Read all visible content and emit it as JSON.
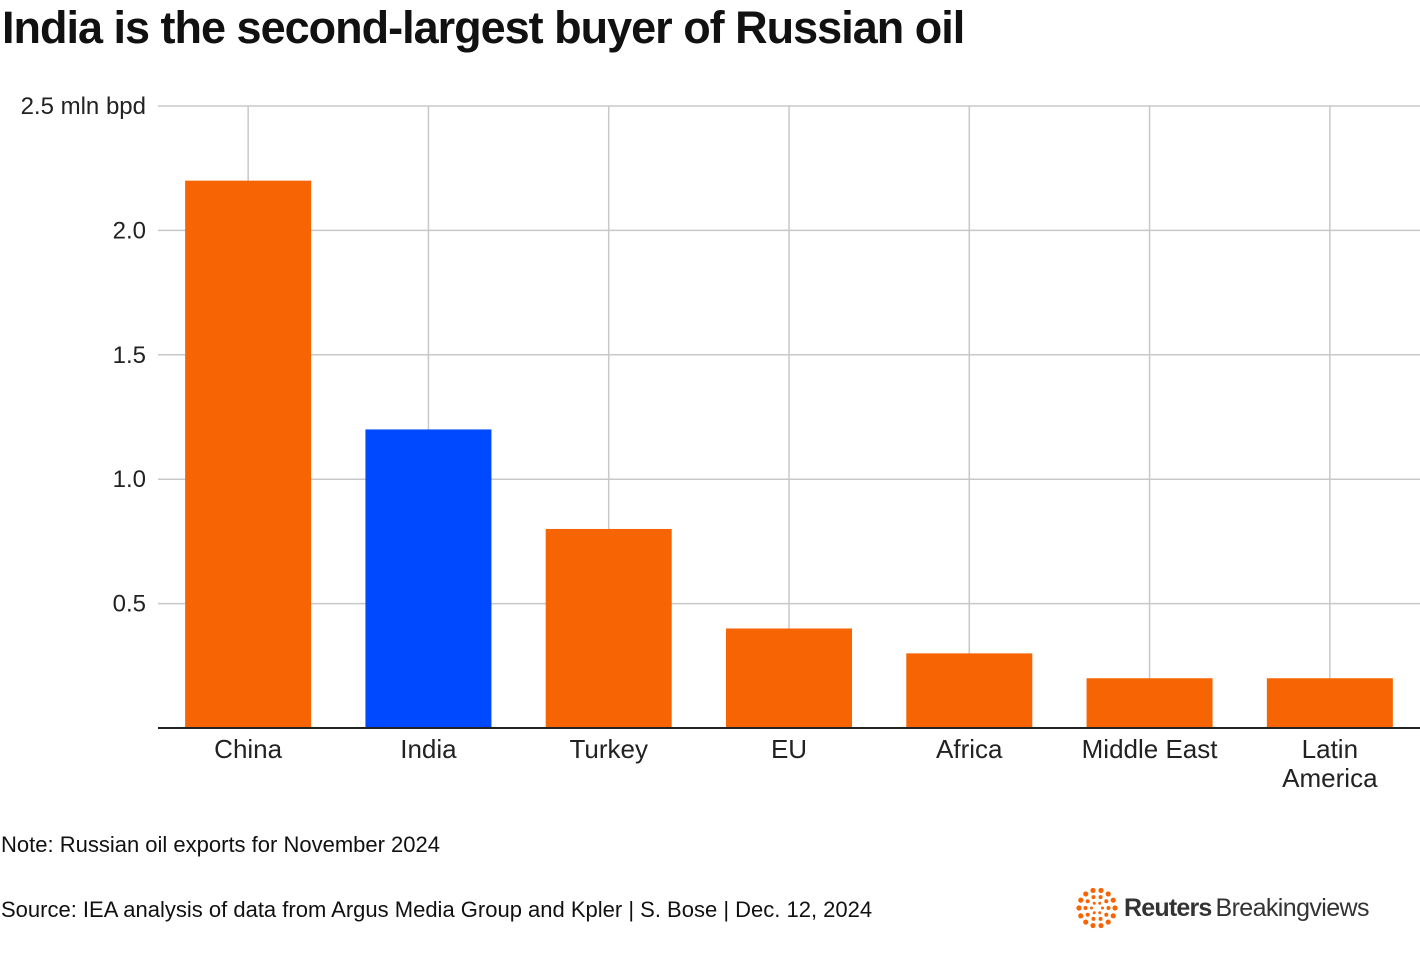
{
  "title": "India is the second-largest buyer of Russian oil",
  "chart_data": {
    "type": "bar",
    "title": "India is the second-largest buyer of Russian oil",
    "ylabel": "mln bpd",
    "y_ticks": [
      {
        "value": 0.5,
        "label": "0.5"
      },
      {
        "value": 1.0,
        "label": "1.0"
      },
      {
        "value": 1.5,
        "label": "1.5"
      },
      {
        "value": 2.0,
        "label": "2.0"
      },
      {
        "value": 2.5,
        "label": "2.5 mln bpd"
      }
    ],
    "ylim": [
      0,
      2.5
    ],
    "grid": true,
    "categories": [
      {
        "name": "China",
        "lines": [
          "China"
        ]
      },
      {
        "name": "India",
        "lines": [
          "India"
        ]
      },
      {
        "name": "Turkey",
        "lines": [
          "Turkey"
        ]
      },
      {
        "name": "EU",
        "lines": [
          "EU"
        ]
      },
      {
        "name": "Africa",
        "lines": [
          "Africa"
        ]
      },
      {
        "name": "Middle East",
        "lines": [
          "Middle East"
        ]
      },
      {
        "name": "Latin America",
        "lines": [
          "Latin",
          "America"
        ]
      }
    ],
    "values": [
      2.2,
      1.2,
      0.8,
      0.4,
      0.3,
      0.2,
      0.2
    ],
    "highlight": "India",
    "colors": {
      "default": "#f76403",
      "highlight": "#0049ff",
      "grid": "#c8c8c8",
      "axis": "#222222",
      "text": "#222222"
    }
  },
  "note": "Note: Russian oil exports for November 2024",
  "source": "Source: IEA analysis of data from Argus Media Group and Kpler | S. Bose | Dec. 12, 2024",
  "brand": {
    "bold": "Reuters",
    "light": "Breakingviews",
    "logo_icon": "reuters-dots-icon",
    "logo_color": "#f76403"
  }
}
